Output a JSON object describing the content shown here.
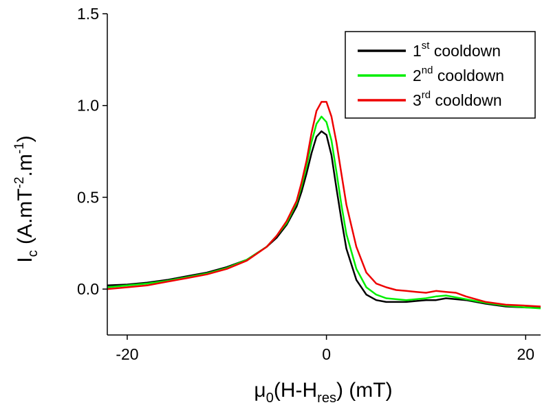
{
  "chart_data": {
    "type": "line",
    "xlim": [
      -22,
      21.5
    ],
    "ylim": [
      -0.25,
      1.5
    ],
    "xticks": [
      -20,
      0,
      20
    ],
    "yticks": [
      0.0,
      0.5,
      1.0,
      1.5
    ],
    "xtick_labels": [
      "-20",
      "0",
      "20"
    ],
    "ytick_labels": [
      "0.0",
      "0.5",
      "1.0",
      "1.5"
    ],
    "xlabel": {
      "mu": "μ",
      "mu_sub": "0",
      "mid": "(H-H",
      "sub": "res",
      "end": ") (mT)"
    },
    "ylabel": {
      "base": "I",
      "base_sub": "c",
      "mid": " (A.mT",
      "sup1": "-2",
      "mid2": ".m",
      "sup2": "-1",
      "end": ")"
    },
    "legend": {
      "position": "top-right"
    },
    "series": [
      {
        "name_prefix": "1",
        "name_sup": "st",
        "name_suffix": " cooldown",
        "color": "#000000",
        "x": [
          -22,
          -20,
          -18,
          -16,
          -14,
          -12,
          -10,
          -8,
          -6,
          -5,
          -4,
          -3,
          -2.5,
          -2,
          -1.5,
          -1,
          -0.5,
          0,
          0.5,
          1,
          1.5,
          2,
          3,
          4,
          5,
          6,
          7,
          8,
          9,
          10,
          11,
          12,
          13,
          14,
          16,
          18,
          20,
          21.5
        ],
        "y": [
          0.02,
          0.025,
          0.035,
          0.05,
          0.07,
          0.09,
          0.12,
          0.16,
          0.23,
          0.28,
          0.35,
          0.45,
          0.53,
          0.63,
          0.74,
          0.83,
          0.86,
          0.84,
          0.73,
          0.55,
          0.38,
          0.22,
          0.05,
          -0.03,
          -0.06,
          -0.07,
          -0.07,
          -0.07,
          -0.065,
          -0.06,
          -0.06,
          -0.05,
          -0.055,
          -0.06,
          -0.08,
          -0.095,
          -0.1,
          -0.1
        ]
      },
      {
        "name_prefix": "2",
        "name_sup": "nd",
        "name_suffix": " cooldown",
        "color": "#00ee00",
        "x": [
          -22,
          -20,
          -18,
          -16,
          -14,
          -12,
          -10,
          -8,
          -6,
          -5,
          -4,
          -3,
          -2.5,
          -2,
          -1.5,
          -1,
          -0.5,
          0,
          0.5,
          1,
          1.5,
          2,
          3,
          4,
          5,
          6,
          7,
          8,
          9,
          10,
          11,
          12,
          13,
          14,
          16,
          18,
          20,
          21.5
        ],
        "y": [
          0.01,
          0.02,
          0.03,
          0.045,
          0.065,
          0.085,
          0.115,
          0.16,
          0.23,
          0.29,
          0.36,
          0.47,
          0.56,
          0.67,
          0.8,
          0.9,
          0.94,
          0.91,
          0.81,
          0.64,
          0.46,
          0.3,
          0.11,
          0.01,
          -0.03,
          -0.05,
          -0.055,
          -0.06,
          -0.055,
          -0.05,
          -0.04,
          -0.035,
          -0.045,
          -0.055,
          -0.075,
          -0.09,
          -0.1,
          -0.105
        ]
      },
      {
        "name_prefix": "3",
        "name_sup": "rd",
        "name_suffix": " cooldown",
        "color": "#ee0000",
        "x": [
          -22,
          -20,
          -18,
          -16,
          -14,
          -12,
          -10,
          -8,
          -6,
          -5,
          -4,
          -3,
          -2.5,
          -2,
          -1.5,
          -1,
          -0.5,
          0,
          0.5,
          1,
          1.5,
          2,
          3,
          4,
          5,
          6,
          7,
          8,
          9,
          10,
          11,
          12,
          13,
          14,
          16,
          18,
          20,
          21.5
        ],
        "y": [
          0.0,
          0.01,
          0.02,
          0.04,
          0.06,
          0.08,
          0.11,
          0.155,
          0.23,
          0.29,
          0.37,
          0.48,
          0.58,
          0.7,
          0.85,
          0.97,
          1.02,
          1.02,
          0.94,
          0.8,
          0.63,
          0.46,
          0.23,
          0.09,
          0.03,
          0.01,
          -0.005,
          -0.01,
          -0.015,
          -0.02,
          -0.01,
          -0.015,
          -0.02,
          -0.04,
          -0.07,
          -0.085,
          -0.09,
          -0.095
        ]
      }
    ]
  }
}
